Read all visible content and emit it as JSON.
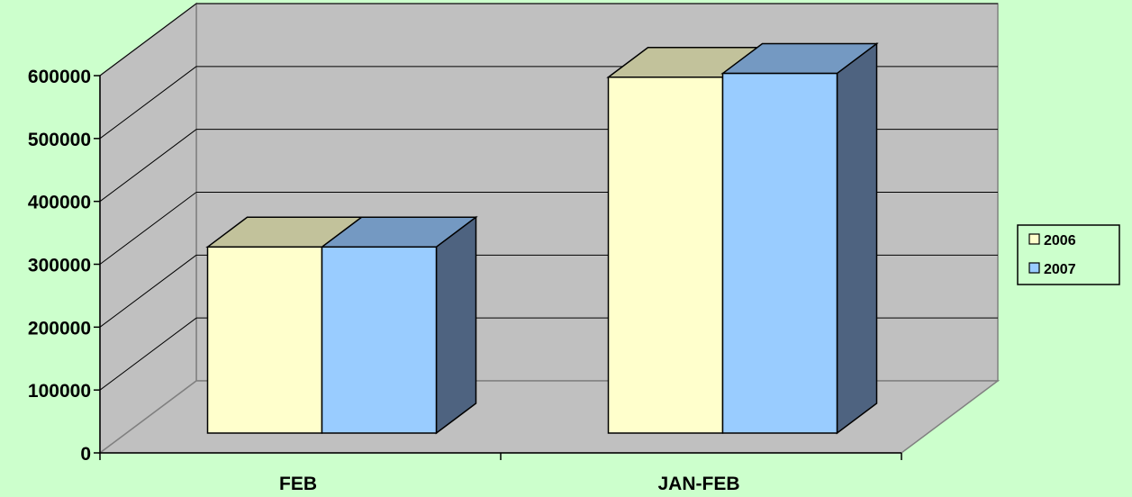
{
  "chart_data": {
    "type": "bar",
    "style": "3d-clustered-column",
    "categories": [
      "FEB",
      "JAN-FEB"
    ],
    "series": [
      {
        "name": "2006",
        "values": [
          296000,
          566000
        ],
        "color": "#ffffcc",
        "top_color": "#c2c29b"
      },
      {
        "name": "2007",
        "values": [
          296000,
          572000
        ],
        "color": "#99ccff",
        "top_color": "#7499c2",
        "side_color": "#4e6380"
      }
    ],
    "yticks": [
      "0",
      "100000",
      "200000",
      "300000",
      "400000",
      "500000",
      "600000"
    ],
    "ylim": [
      0,
      600000
    ],
    "grid": true,
    "legend": "right",
    "background": "#ccffcc",
    "wall_color": "#c0c0c0"
  }
}
